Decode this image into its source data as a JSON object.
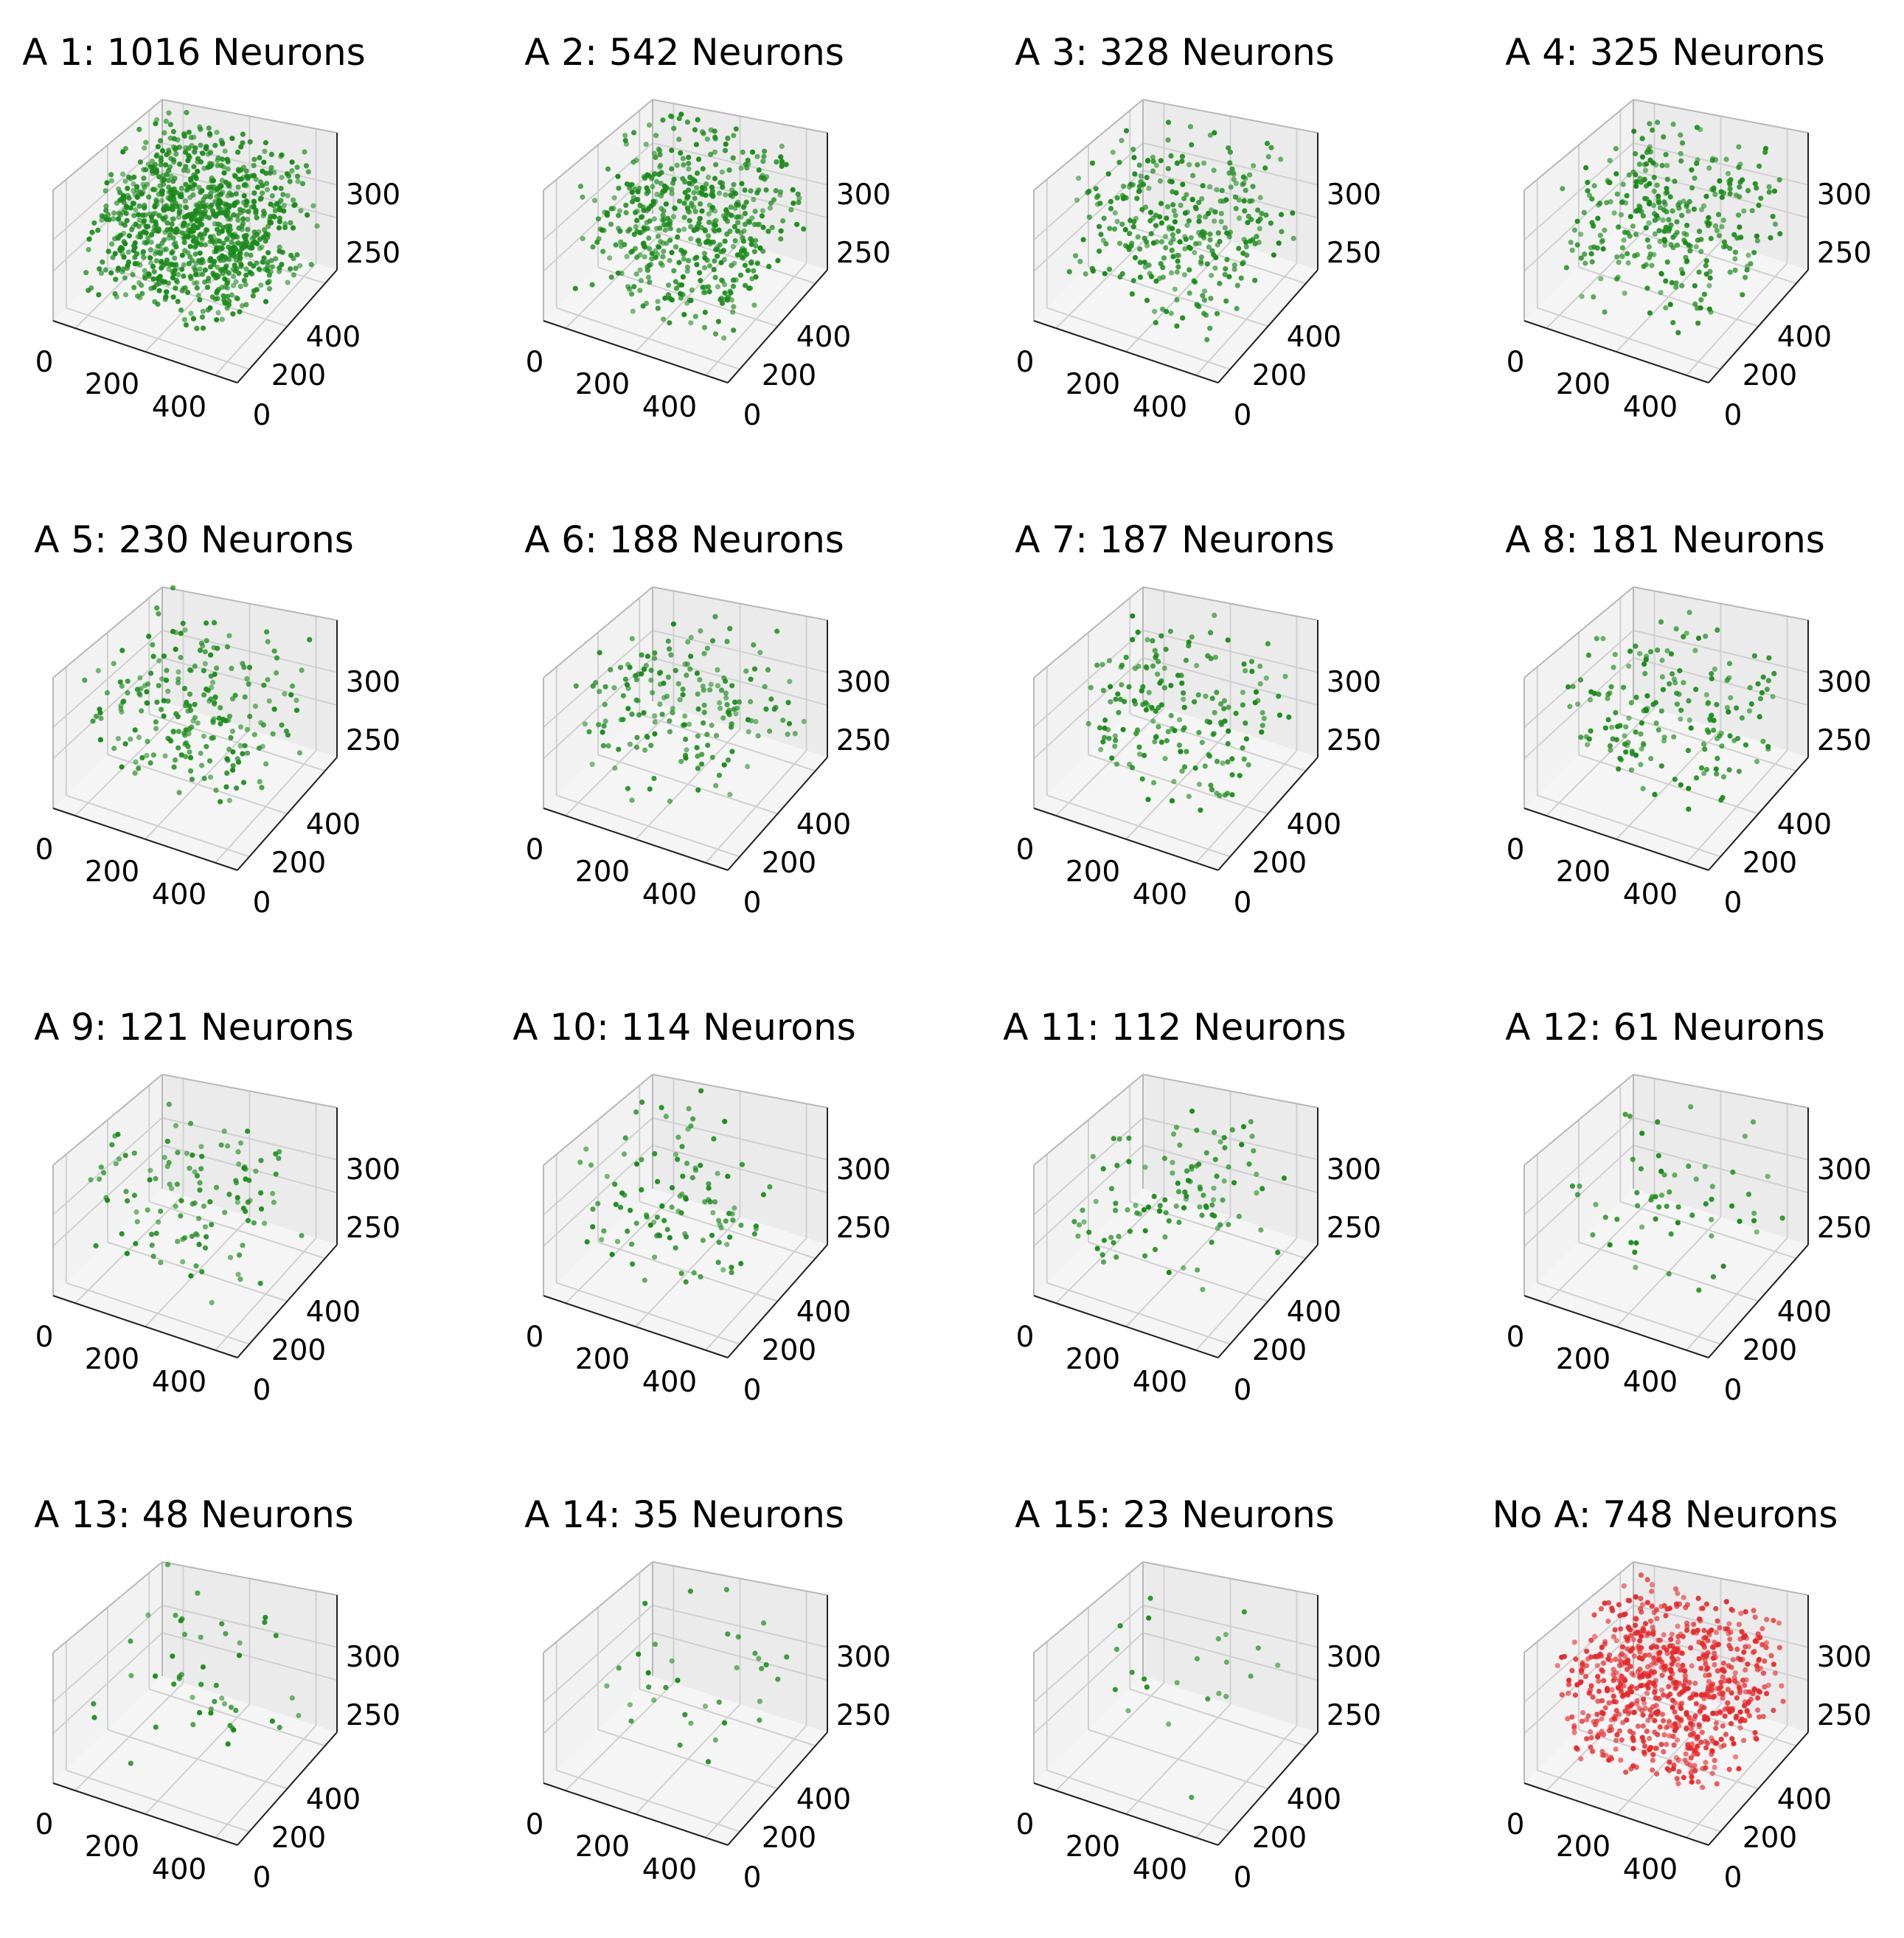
{
  "chart_data": [
    {
      "type": "scatter3d",
      "title": "A 1: 1016 Neurons",
      "count": 1016,
      "color": "#1a8a1a",
      "x_ticks": [
        "0",
        "200",
        "400"
      ],
      "y_ticks": [
        "0",
        "200",
        "400"
      ],
      "z_ticks": [
        "250",
        "300"
      ],
      "xlim": [
        0,
        500
      ],
      "ylim": [
        0,
        500
      ],
      "zlim": [
        200,
        330
      ]
    },
    {
      "type": "scatter3d",
      "title": "A 2: 542 Neurons",
      "count": 542,
      "color": "#1a8a1a",
      "x_ticks": [
        "0",
        "200",
        "400"
      ],
      "y_ticks": [
        "0",
        "200",
        "400"
      ],
      "z_ticks": [
        "250",
        "300"
      ],
      "xlim": [
        0,
        500
      ],
      "ylim": [
        0,
        500
      ],
      "zlim": [
        200,
        330
      ]
    },
    {
      "type": "scatter3d",
      "title": "A 3: 328 Neurons",
      "count": 328,
      "color": "#1a8a1a",
      "x_ticks": [
        "0",
        "200",
        "400"
      ],
      "y_ticks": [
        "0",
        "200",
        "400"
      ],
      "z_ticks": [
        "250",
        "300"
      ],
      "xlim": [
        0,
        500
      ],
      "ylim": [
        0,
        500
      ],
      "zlim": [
        200,
        330
      ]
    },
    {
      "type": "scatter3d",
      "title": "A 4: 325 Neurons",
      "count": 325,
      "color": "#1a8a1a",
      "x_ticks": [
        "0",
        "200",
        "400"
      ],
      "y_ticks": [
        "0",
        "200",
        "400"
      ],
      "z_ticks": [
        "250",
        "300"
      ],
      "xlim": [
        0,
        500
      ],
      "ylim": [
        0,
        500
      ],
      "zlim": [
        200,
        330
      ]
    },
    {
      "type": "scatter3d",
      "title": "A 5: 230 Neurons",
      "count": 230,
      "color": "#1a8a1a",
      "x_ticks": [
        "0",
        "200",
        "400"
      ],
      "y_ticks": [
        "0",
        "200",
        "400"
      ],
      "z_ticks": [
        "250",
        "300"
      ],
      "xlim": [
        0,
        500
      ],
      "ylim": [
        0,
        500
      ],
      "zlim": [
        200,
        330
      ]
    },
    {
      "type": "scatter3d",
      "title": "A 6: 188 Neurons",
      "count": 188,
      "color": "#1a8a1a",
      "x_ticks": [
        "0",
        "200",
        "400"
      ],
      "y_ticks": [
        "0",
        "200",
        "400"
      ],
      "z_ticks": [
        "250",
        "300"
      ],
      "xlim": [
        0,
        500
      ],
      "ylim": [
        0,
        500
      ],
      "zlim": [
        200,
        330
      ]
    },
    {
      "type": "scatter3d",
      "title": "A 7: 187 Neurons",
      "count": 187,
      "color": "#1a8a1a",
      "x_ticks": [
        "0",
        "200",
        "400"
      ],
      "y_ticks": [
        "0",
        "200",
        "400"
      ],
      "z_ticks": [
        "250",
        "300"
      ],
      "xlim": [
        0,
        500
      ],
      "ylim": [
        0,
        500
      ],
      "zlim": [
        200,
        330
      ]
    },
    {
      "type": "scatter3d",
      "title": "A 8: 181 Neurons",
      "count": 181,
      "color": "#1a8a1a",
      "x_ticks": [
        "0",
        "200",
        "400"
      ],
      "y_ticks": [
        "0",
        "200",
        "400"
      ],
      "z_ticks": [
        "250",
        "300"
      ],
      "xlim": [
        0,
        500
      ],
      "ylim": [
        0,
        500
      ],
      "zlim": [
        200,
        330
      ]
    },
    {
      "type": "scatter3d",
      "title": "A 9: 121 Neurons",
      "count": 121,
      "color": "#1a8a1a",
      "x_ticks": [
        "0",
        "200",
        "400"
      ],
      "y_ticks": [
        "0",
        "200",
        "400"
      ],
      "z_ticks": [
        "250",
        "300"
      ],
      "xlim": [
        0,
        500
      ],
      "ylim": [
        0,
        500
      ],
      "zlim": [
        200,
        330
      ]
    },
    {
      "type": "scatter3d",
      "title": "A 10: 114 Neurons",
      "count": 114,
      "color": "#1a8a1a",
      "x_ticks": [
        "0",
        "200",
        "400"
      ],
      "y_ticks": [
        "0",
        "200",
        "400"
      ],
      "z_ticks": [
        "250",
        "300"
      ],
      "xlim": [
        0,
        500
      ],
      "ylim": [
        0,
        500
      ],
      "zlim": [
        200,
        330
      ]
    },
    {
      "type": "scatter3d",
      "title": "A 11: 112 Neurons",
      "count": 112,
      "color": "#1a8a1a",
      "x_ticks": [
        "0",
        "200",
        "400"
      ],
      "y_ticks": [
        "0",
        "200",
        "400"
      ],
      "z_ticks": [
        "250",
        "300"
      ],
      "xlim": [
        0,
        500
      ],
      "ylim": [
        0,
        500
      ],
      "zlim": [
        200,
        330
      ]
    },
    {
      "type": "scatter3d",
      "title": "A 12: 61 Neurons",
      "count": 61,
      "color": "#1a8a1a",
      "x_ticks": [
        "0",
        "200",
        "400"
      ],
      "y_ticks": [
        "0",
        "200",
        "400"
      ],
      "z_ticks": [
        "250",
        "300"
      ],
      "xlim": [
        0,
        500
      ],
      "ylim": [
        0,
        500
      ],
      "zlim": [
        200,
        330
      ]
    },
    {
      "type": "scatter3d",
      "title": "A 13: 48 Neurons",
      "count": 48,
      "color": "#1a8a1a",
      "x_ticks": [
        "0",
        "200",
        "400"
      ],
      "y_ticks": [
        "0",
        "200",
        "400"
      ],
      "z_ticks": [
        "250",
        "300"
      ],
      "xlim": [
        0,
        500
      ],
      "ylim": [
        0,
        500
      ],
      "zlim": [
        200,
        330
      ]
    },
    {
      "type": "scatter3d",
      "title": "A 14: 35 Neurons",
      "count": 35,
      "color": "#1a8a1a",
      "x_ticks": [
        "0",
        "200",
        "400"
      ],
      "y_ticks": [
        "0",
        "200",
        "400"
      ],
      "z_ticks": [
        "250",
        "300"
      ],
      "xlim": [
        0,
        500
      ],
      "ylim": [
        0,
        500
      ],
      "zlim": [
        200,
        330
      ]
    },
    {
      "type": "scatter3d",
      "title": "A 15: 23 Neurons",
      "count": 23,
      "color": "#1a8a1a",
      "x_ticks": [
        "0",
        "200",
        "400"
      ],
      "y_ticks": [
        "0",
        "200",
        "400"
      ],
      "z_ticks": [
        "250",
        "300"
      ],
      "xlim": [
        0,
        500
      ],
      "ylim": [
        0,
        500
      ],
      "zlim": [
        200,
        330
      ]
    },
    {
      "type": "scatter3d",
      "title": "No A: 748 Neurons",
      "count": 748,
      "color": "#e8282b",
      "x_ticks": [
        "0",
        "200",
        "400"
      ],
      "y_ticks": [
        "0",
        "200",
        "400"
      ],
      "z_ticks": [
        "250",
        "300"
      ],
      "xlim": [
        0,
        500
      ],
      "ylim": [
        0,
        500
      ],
      "zlim": [
        200,
        330
      ]
    }
  ]
}
